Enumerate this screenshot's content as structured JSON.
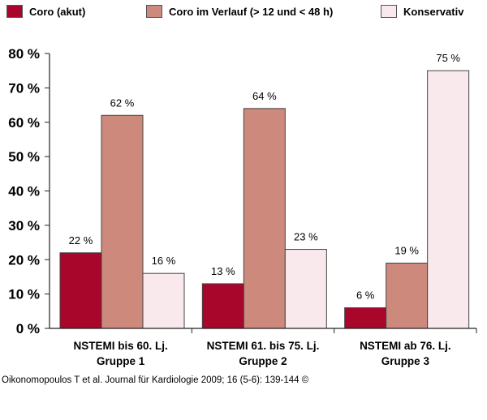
{
  "chart_data": {
    "type": "bar",
    "categories": [
      [
        "NSTEMI bis 60. Lj.",
        "Gruppe 1"
      ],
      [
        "NSTEMI 61. bis 75. Lj.",
        "Gruppe 2"
      ],
      [
        "NSTEMI ab 76. Lj.",
        "Gruppe 3"
      ]
    ],
    "series": [
      {
        "name": "Coro (akut)",
        "values": [
          22,
          13,
          6
        ],
        "color": "#a8062a"
      },
      {
        "name": "Coro im Verlauf (> 12 und < 48 h)",
        "values": [
          62,
          64,
          19
        ],
        "color": "#cd8a7c"
      },
      {
        "name": "Konservativ",
        "values": [
          16,
          23,
          75
        ],
        "color": "#f9e9ec"
      }
    ],
    "value_labels": [
      [
        "22 %",
        "62 %",
        "16 %"
      ],
      [
        "13 %",
        "64 %",
        "23 %"
      ],
      [
        "6 %",
        "19 %",
        "75 %"
      ]
    ],
    "yticks": [
      "0 %",
      "10 %",
      "20 %",
      "30 %",
      "40 %",
      "50 %",
      "60 %",
      "70 %",
      "80 %"
    ],
    "ylim": [
      0,
      80
    ],
    "grid": false,
    "legend_position": "top"
  },
  "credit": "Oikonomopoulos T et al. Journal für Kardiologie 2009; 16 (5-6): 139-144 ©"
}
